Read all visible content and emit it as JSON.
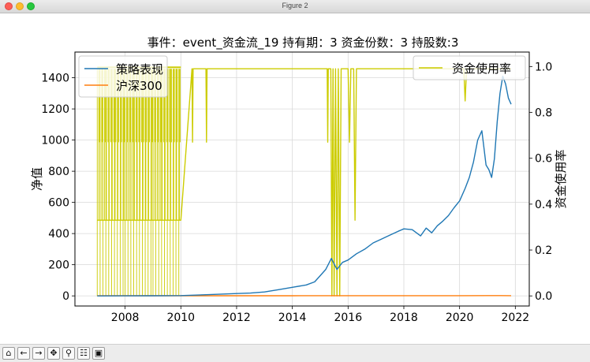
{
  "window": {
    "title": "Figure 2"
  },
  "chart_data": {
    "type": "line",
    "title": "事件：event_资金流_19 持有期：3 资金份数：3 持股数:3",
    "xlabel": "",
    "ylabel": "净值",
    "ylabel_right": "资金使用率",
    "xlim": [
      2006.2,
      2022.5
    ],
    "ylim": [
      -65,
      1565
    ],
    "ylim_right": [
      -0.044,
      1.063
    ],
    "x_ticks": [
      "2008",
      "2010",
      "2012",
      "2014",
      "2016",
      "2018",
      "2020",
      "2022"
    ],
    "y_ticks": [
      "0",
      "200",
      "400",
      "600",
      "800",
      "1000",
      "1200",
      "1400"
    ],
    "y_ticks_right": [
      "0.0",
      "0.2",
      "0.4",
      "0.6",
      "0.8",
      "1.0"
    ],
    "grid": true,
    "legend_left_placement": "top-left",
    "legend_right_placement": "top-right",
    "series": [
      {
        "name": "策略表现",
        "axis": "left",
        "color": "#1f77b4",
        "x": [
          2007.0,
          2008.0,
          2009.0,
          2010.0,
          2011.0,
          2012.0,
          2012.5,
          2013.0,
          2013.5,
          2014.0,
          2014.5,
          2014.8,
          2015.0,
          2015.2,
          2015.4,
          2015.5,
          2015.6,
          2015.8,
          2016.0,
          2016.3,
          2016.6,
          2016.9,
          2017.2,
          2017.5,
          2017.8,
          2018.0,
          2018.3,
          2018.6,
          2018.8,
          2019.0,
          2019.2,
          2019.4,
          2019.6,
          2019.8,
          2020.0,
          2020.2,
          2020.35,
          2020.5,
          2020.65,
          2020.8,
          2020.95,
          2021.05,
          2021.15,
          2021.25,
          2021.35,
          2021.45,
          2021.55,
          2021.65,
          2021.75,
          2021.85
        ],
        "values": [
          0,
          0.5,
          1,
          2,
          8,
          15,
          18,
          25,
          40,
          55,
          70,
          90,
          130,
          170,
          240,
          205,
          170,
          215,
          230,
          270,
          300,
          340,
          365,
          390,
          415,
          430,
          425,
          385,
          435,
          405,
          450,
          480,
          515,
          565,
          610,
          690,
          760,
          860,
          1000,
          1060,
          840,
          810,
          760,
          880,
          1120,
          1300,
          1410,
          1360,
          1270,
          1230
        ]
      },
      {
        "name": "沪深300",
        "axis": "left",
        "color": "#ff7f0e",
        "x": [
          2007.0,
          2008.0,
          2010.0,
          2012.0,
          2014.0,
          2015.4,
          2016.0,
          2018.0,
          2020.0,
          2021.0,
          2021.85
        ],
        "values": [
          0.6,
          0.7,
          0.9,
          1.0,
          1.0,
          1.5,
          1.1,
          1.2,
          1.3,
          1.6,
          1.3
        ]
      },
      {
        "name": "资金使用率",
        "axis": "right",
        "color": "#cccc00",
        "x": [
          2007.0,
          2010.0,
          2010.4,
          2010.42,
          2010.44,
          2010.9,
          2010.92,
          2010.94,
          2015.25,
          2015.27,
          2015.29,
          2015.38,
          2015.42,
          2015.46,
          2015.5,
          2015.55,
          2015.6,
          2015.65,
          2015.7,
          2015.75,
          2016.0,
          2016.05,
          2016.1,
          2016.2,
          2016.25,
          2016.3,
          2020.15,
          2020.2,
          2020.25,
          2021.85
        ],
        "values": [
          0.33,
          0.33,
          0.99,
          0.67,
          0.99,
          0.99,
          0.67,
          0.99,
          0.99,
          0.67,
          0.99,
          0.99,
          0.0,
          0.99,
          0.0,
          0.99,
          0.0,
          0.99,
          0.0,
          0.99,
          0.99,
          0.67,
          0.99,
          0.99,
          0.33,
          0.99,
          0.99,
          0.85,
          0.99,
          0.99
        ]
      }
    ]
  },
  "toolbar": {
    "buttons": [
      {
        "name": "home-button",
        "glyph": "⌂"
      },
      {
        "name": "back-button",
        "glyph": "←"
      },
      {
        "name": "forward-button",
        "glyph": "→"
      },
      {
        "name": "pan-button",
        "glyph": "✥"
      },
      {
        "name": "zoom-button",
        "glyph": "⚲"
      },
      {
        "name": "configure-subplots-button",
        "glyph": "☷"
      },
      {
        "name": "save-button",
        "glyph": "▣"
      }
    ]
  }
}
